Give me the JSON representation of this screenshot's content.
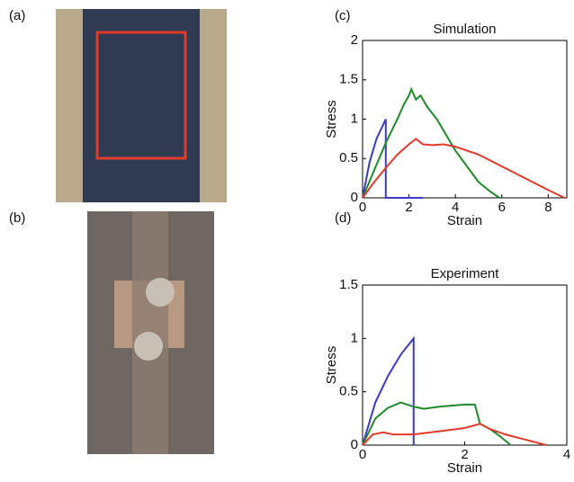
{
  "photos": [
    {
      "label": "(a)"
    },
    {
      "label": "(b)"
    }
  ],
  "chart_data": [
    {
      "type": "line",
      "label": "(c)",
      "title": "Simulation",
      "xlabel": "Strain",
      "ylabel": "Stress",
      "xlim": [
        0,
        8.8
      ],
      "ylim": [
        0,
        2
      ],
      "xticks": [
        0,
        2,
        4,
        6,
        8
      ],
      "yticks": [
        0,
        0.5,
        1,
        1.5,
        2
      ],
      "series": [
        {
          "color": "#3a3ac8",
          "x": [
            0,
            0.3,
            0.6,
            1,
            1,
            1.6,
            2.6
          ],
          "values": [
            0,
            0.45,
            0.75,
            1,
            0,
            0,
            0
          ]
        },
        {
          "color": "#1f8a2a",
          "x": [
            0,
            0.5,
            1,
            1.5,
            1.8,
            2,
            2.1,
            2.3,
            2.5,
            2.8,
            3.2,
            3.6,
            4,
            4.5,
            5,
            5.5,
            5.9
          ],
          "values": [
            0,
            0.35,
            0.7,
            1.0,
            1.2,
            1.3,
            1.38,
            1.25,
            1.3,
            1.15,
            1.0,
            0.8,
            0.6,
            0.4,
            0.2,
            0.08,
            0
          ]
        },
        {
          "color": "#e03a2a",
          "x": [
            0,
            0.5,
            1,
            1.5,
            2,
            2.3,
            2.6,
            3,
            3.5,
            4,
            5,
            6,
            7,
            8,
            8.7
          ],
          "values": [
            0,
            0.2,
            0.38,
            0.55,
            0.68,
            0.75,
            0.68,
            0.67,
            0.68,
            0.65,
            0.55,
            0.4,
            0.25,
            0.1,
            0
          ]
        }
      ]
    },
    {
      "type": "line",
      "label": "(d)",
      "title": "Experiment",
      "xlabel": "Strain",
      "ylabel": "Stress",
      "xlim": [
        0,
        4
      ],
      "ylim": [
        0,
        1.5
      ],
      "xticks": [
        0,
        2,
        4
      ],
      "yticks": [
        0,
        0.5,
        1,
        1.5
      ],
      "series": [
        {
          "color": "#3a3ac8",
          "x": [
            0,
            0.25,
            0.5,
            0.75,
            1,
            1
          ],
          "values": [
            0,
            0.4,
            0.65,
            0.85,
            1,
            0
          ]
        },
        {
          "color": "#1f8a2a",
          "x": [
            0,
            0.25,
            0.5,
            0.75,
            1,
            1.2,
            1.5,
            2,
            2.2,
            2.3,
            2.5,
            2.7,
            2.9
          ],
          "values": [
            0,
            0.25,
            0.35,
            0.4,
            0.36,
            0.34,
            0.36,
            0.38,
            0.38,
            0.2,
            0.15,
            0.08,
            0
          ]
        },
        {
          "color": "#e03a2a",
          "x": [
            0,
            0.2,
            0.4,
            0.6,
            1,
            1.5,
            2,
            2.3,
            2.5,
            2.8,
            3.2,
            3.6
          ],
          "values": [
            0,
            0.1,
            0.12,
            0.1,
            0.1,
            0.13,
            0.16,
            0.2,
            0.15,
            0.1,
            0.05,
            0
          ]
        }
      ]
    }
  ]
}
